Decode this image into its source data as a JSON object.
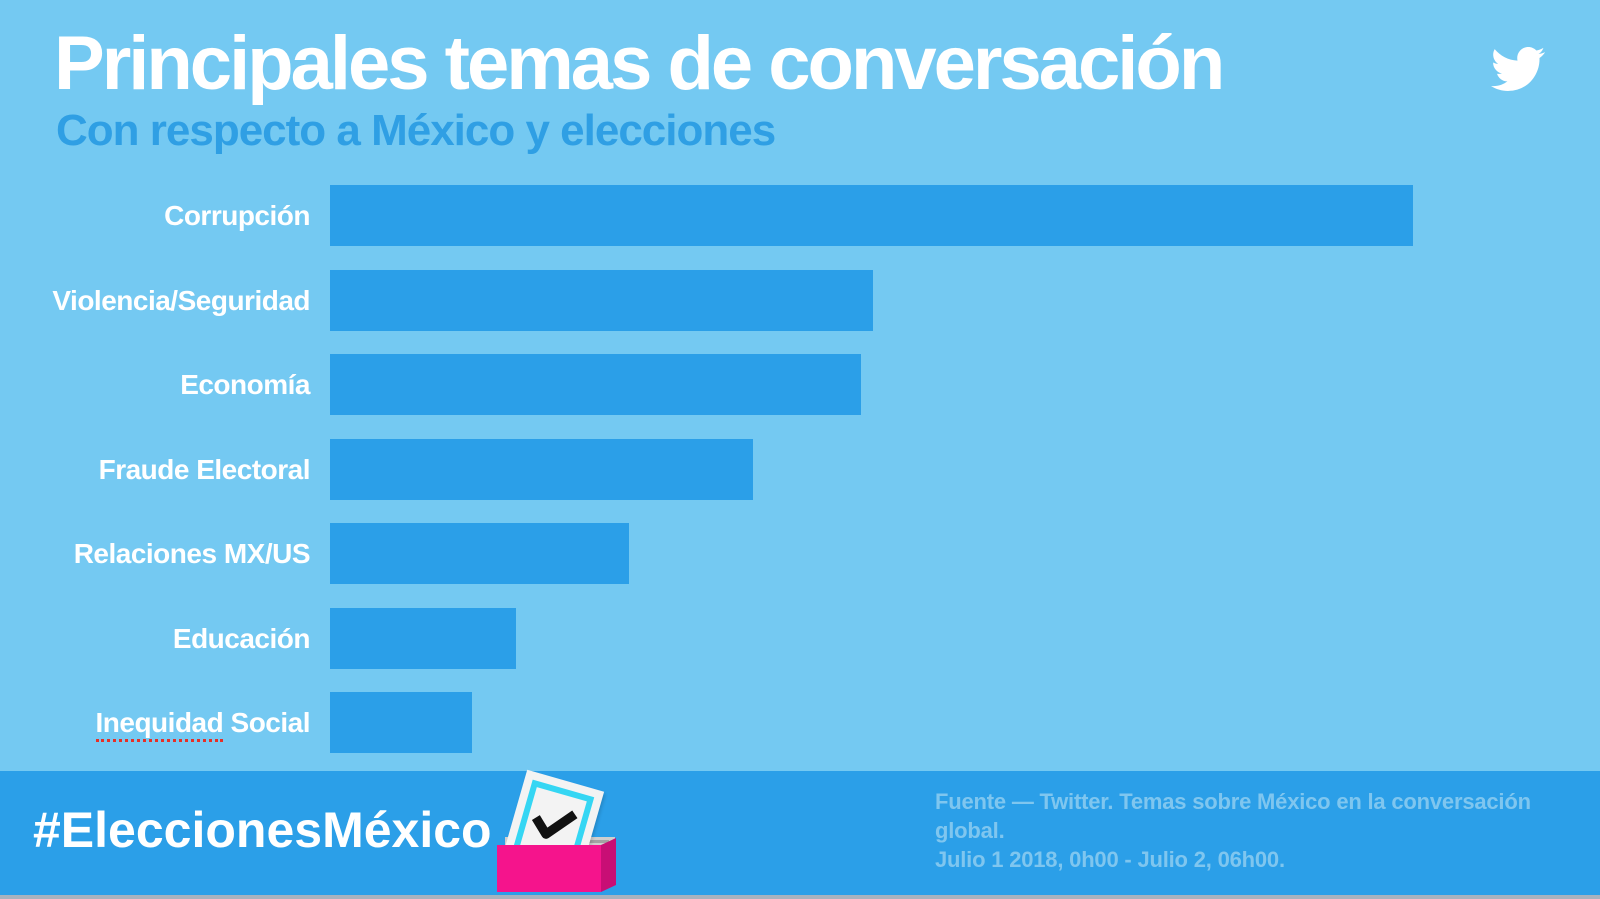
{
  "header": {
    "title": "Principales temas de conversación",
    "subtitle": "Con respecto a México y elecciones",
    "logo": "twitter-bird-icon"
  },
  "chart_data": {
    "type": "bar",
    "orientation": "horizontal",
    "title": "Principales temas de conversación",
    "subtitle": "Con respecto a México y elecciones",
    "categories": [
      "Corrupción",
      "Violencia/Seguridad",
      "Economía",
      "Fraude Electoral",
      "Relaciones MX/US",
      "Educación",
      "Inequidad Social"
    ],
    "values": [
      100,
      50.1,
      49.0,
      39.1,
      27.6,
      17.2,
      13.1
    ],
    "value_axis": "hidden — values are relative bar lengths (% of largest bar)",
    "grid": "off",
    "legend": "none",
    "spellcheck_underline": {
      "category_index": 6,
      "word": "Inequidad"
    }
  },
  "footer": {
    "hashtag": "#EleccionesMéxico",
    "ballot_icon": "ballot-box-icon",
    "source_line1": "Fuente — Twitter. Temas sobre México en la conversación global.",
    "source_line2": "Julio 1 2018, 0h00 - Julio 2, 06h00."
  },
  "colors": {
    "background": "#74C9F2",
    "bar": "#2B9FE8",
    "footer_background": "#2B9FE8",
    "title_text": "#FFFFFF",
    "subtitle_text": "#2F9FE4",
    "label_text": "#FFFFFF",
    "source_text": "#7FC6EF",
    "spellcheck_red": "#E63027",
    "ballot_box_pink": "#F5148C",
    "ballot_box_pink_dark": "#C80E75",
    "ballot_paper_cyan": "#35D6F3"
  }
}
